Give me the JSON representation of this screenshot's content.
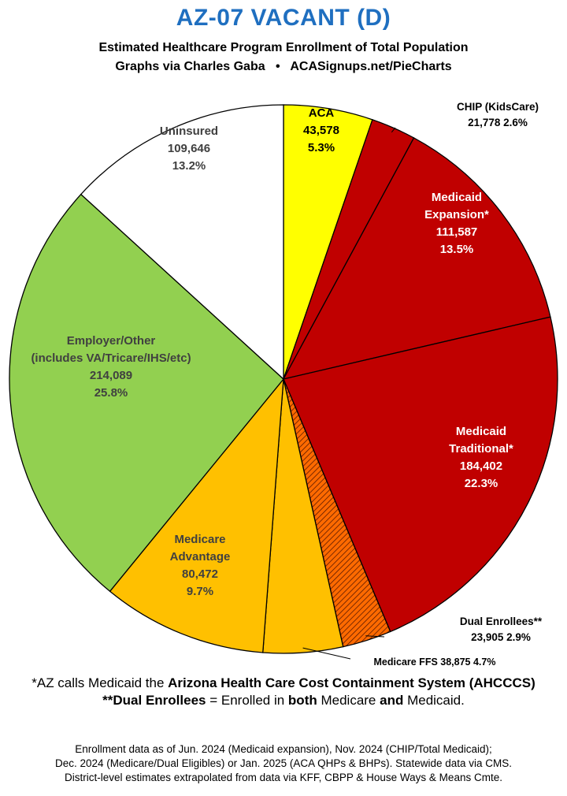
{
  "chart_data": {
    "type": "pie",
    "title": "AZ-07 VACANT (D)",
    "subtitle": "Estimated Healthcare Program Enrollment of Total Population",
    "credit": {
      "prefix": "Graphs via Charles Gaba",
      "separator": "•",
      "url": "ACASignups.net/PieCharts"
    },
    "slices": [
      {
        "key": "aca",
        "label_lines": [
          "ACA"
        ],
        "value_text": "43,578",
        "pct_text": "5.3%",
        "value": 43578,
        "percent": 5.3,
        "color": "#ffff00",
        "text_color": "#000000"
      },
      {
        "key": "chip",
        "label_lines": [
          "CHIP (KidsCare)"
        ],
        "value_text": "21,778",
        "pct_text": "2.6%",
        "value": 21778,
        "percent": 2.6,
        "color": "#c00000",
        "text_color": "#000000"
      },
      {
        "key": "medicaid-expansion",
        "label_lines": [
          "Medicaid",
          "Expansion*"
        ],
        "value_text": "111,587",
        "pct_text": "13.5%",
        "value": 111587,
        "percent": 13.5,
        "color": "#c00000",
        "text_color": "#ffffff"
      },
      {
        "key": "medicaid-traditional",
        "label_lines": [
          "Medicaid",
          "Traditional*"
        ],
        "value_text": "184,402",
        "pct_text": "22.3%",
        "value": 184402,
        "percent": 22.3,
        "color": "#c00000",
        "text_color": "#ffffff"
      },
      {
        "key": "dual-enrollees",
        "label_lines": [
          "Dual Enrollees**"
        ],
        "value_text": "23,905",
        "pct_text": "2.9%",
        "value": 23905,
        "percent": 2.9,
        "color": "hatched",
        "text_color": "#000000"
      },
      {
        "key": "medicare-ffs",
        "label_lines": [
          "Medicare FFS"
        ],
        "value_text": "38,875",
        "pct_text": "4.7%",
        "value": 38875,
        "percent": 4.7,
        "color": "#ffc000",
        "text_color": "#000000"
      },
      {
        "key": "medicare-advantage",
        "label_lines": [
          "Medicare",
          "Advantage"
        ],
        "value_text": "80,472",
        "pct_text": "9.7%",
        "value": 80472,
        "percent": 9.7,
        "color": "#ffc000",
        "text_color": "#404040"
      },
      {
        "key": "employer-other",
        "label_lines": [
          "Employer/Other",
          "(includes VA/Tricare/IHS/etc)"
        ],
        "value_text": "214,089",
        "pct_text": "25.8%",
        "value": 214089,
        "percent": 25.8,
        "color": "#92d050",
        "text_color": "#404040"
      },
      {
        "key": "uninsured",
        "label_lines": [
          "Uninsured"
        ],
        "value_text": "109,646",
        "pct_text": "13.2%",
        "value": 109646,
        "percent": 13.2,
        "color": "#ffffff",
        "text_color": "#404040"
      }
    ]
  },
  "notes": {
    "line1_pre": "*AZ calls Medicaid the ",
    "line1_bold": "Arizona Health Care Cost Containment System (AHCCCS)",
    "line2_bold1": "**Dual Enrollees",
    "line2_mid": " = Enrolled in ",
    "line2_bold2": "both",
    "line2_mid2": " Medicare ",
    "line2_bold3": "and",
    "line2_end": " Medicaid."
  },
  "footer": {
    "line1": "Enrollment data as of Jun. 2024 (Medicaid expansion), Nov. 2024 (CHIP/Total Medicaid);",
    "line2": "Dec. 2024 (Medicare/Dual Eligibles) or Jan. 2025 (ACA QHPs & BHPs). Statewide data via CMS.",
    "line3": "District-level estimates extrapolated from data via KFF, CBPP & House Ways & Means Cmte."
  }
}
